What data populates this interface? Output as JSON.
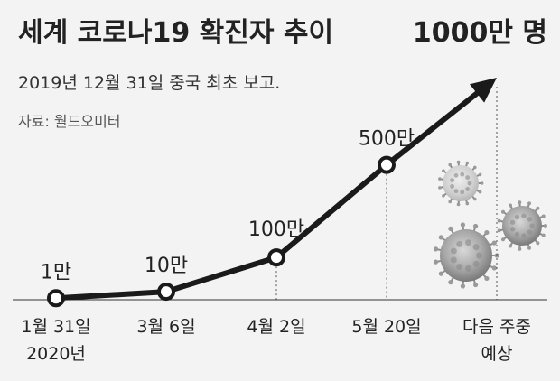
{
  "chart_data": {
    "type": "line",
    "title": "세계 코로나19 확진자 추이",
    "subtitle": "2019년 12월 31일 중국 최초 보고.",
    "source": "자료: 월드오미터",
    "categories": [
      {
        "line1": "1월 31일",
        "line2": "2020년"
      },
      {
        "line1": "3월 6일",
        "line2": ""
      },
      {
        "line1": "4월 2일",
        "line2": ""
      },
      {
        "line1": "5월 20일",
        "line2": ""
      },
      {
        "line1": "다음 주중",
        "line2": "예상"
      }
    ],
    "values": [
      10000,
      100000,
      1000000,
      5000000,
      10000000
    ],
    "data_labels": [
      "1만",
      "10만",
      "100만",
      "500만",
      "1000만 명"
    ],
    "projected_last": true,
    "colors": {
      "line": "#1a1a1a",
      "marker_fill": "#ffffff",
      "background": "#f3f3f3",
      "virus": "#9a9a9a"
    },
    "decoration": "coronavirus-illustrations"
  }
}
